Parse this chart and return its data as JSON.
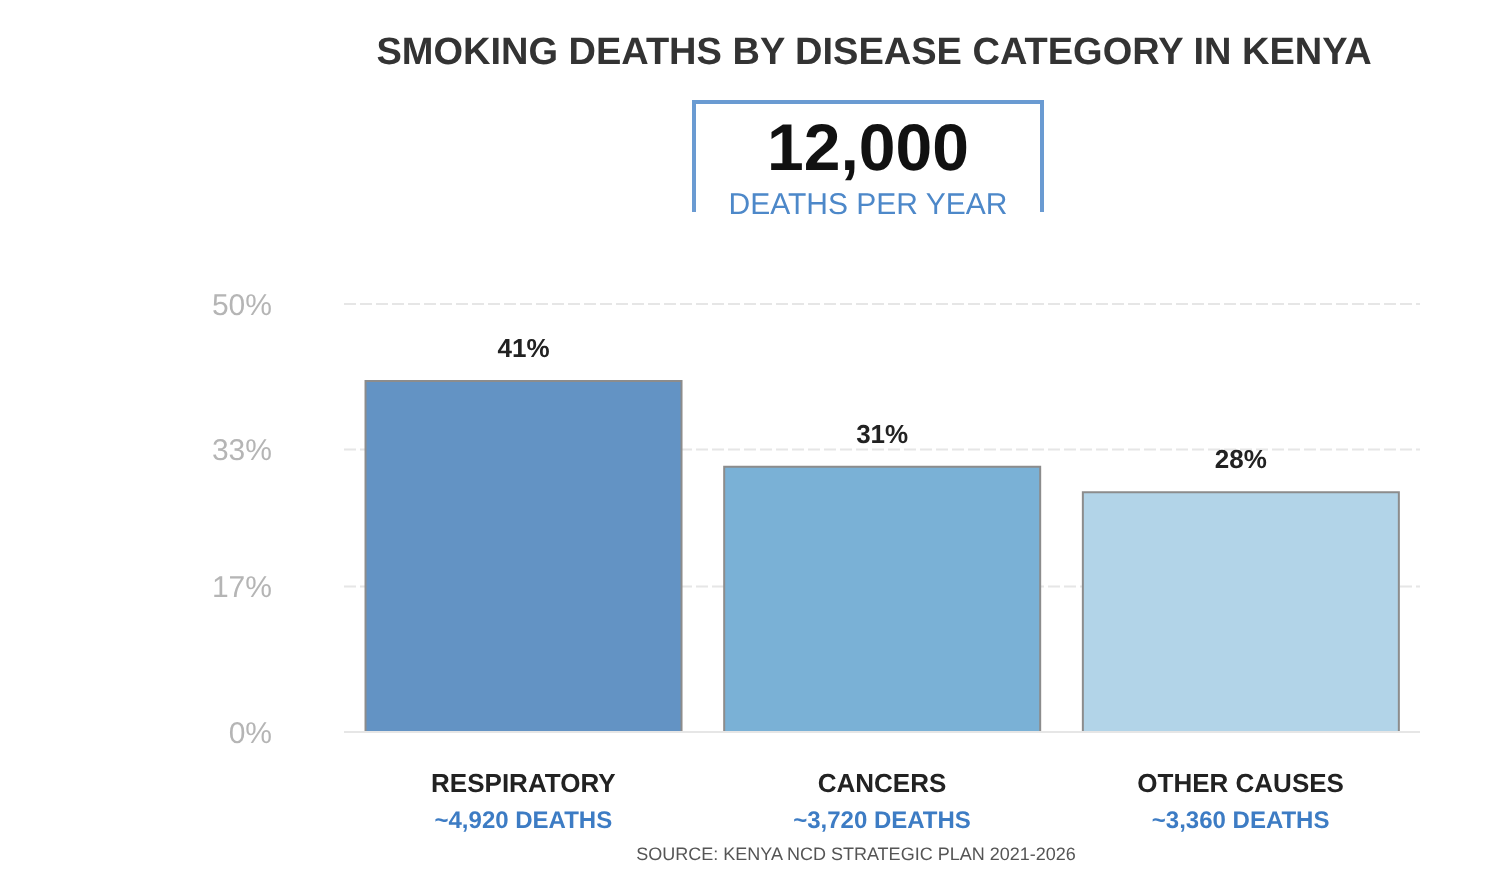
{
  "chart_data": {
    "type": "bar",
    "title": "SMOKING DEATHS BY DISEASE CATEGORY IN KENYA",
    "subtitle": "12,000",
    "categories": [
      "RESPIRATORY",
      "CANCERS",
      "OTHER CAUSES"
    ],
    "values": [
      41,
      31,
      28
    ],
    "colors": [
      "#6393c4",
      "#7ab1d6",
      "#b2d4e8"
    ],
    "value_labels": [
      "41%",
      "31%",
      "28%"
    ],
    "ylim": [
      0,
      50
    ],
    "yticks": [
      {
        "value": 0,
        "label": "0%"
      },
      {
        "value": 17,
        "label": "17%"
      },
      {
        "value": 33,
        "label": "33%"
      },
      {
        "value": 50,
        "label": "50%"
      }
    ],
    "grid": "y",
    "legend": false,
    "annotations": [
      "~4,920 DEATHS",
      "~3,720 DEATHS",
      "~3,360 DEATHS",
      "DEATHS PER YEAR",
      "SOURCE: KENYA NCD STRATEGIC PLAN 2021-2026"
    ]
  }
}
